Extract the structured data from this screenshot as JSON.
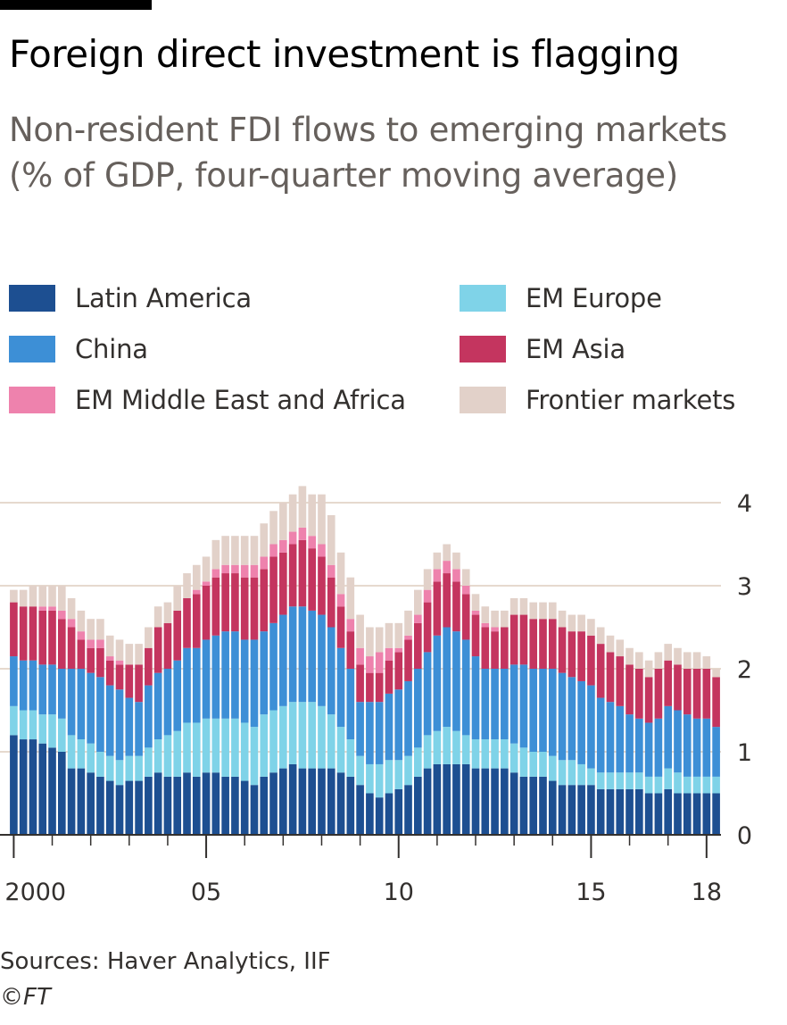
{
  "header": {
    "title": "Foreign direct investment is flagging",
    "subtitle": "Non-resident FDI flows to emerging markets (% of GDP, four-quarter moving average)"
  },
  "footer": {
    "source": "Sources: Haver Analytics, IIF",
    "copyright_symbol": "©",
    "copyright_brand": "FT"
  },
  "chart_data": {
    "type": "bar",
    "stacked": true,
    "title": "Foreign direct investment is flagging",
    "subtitle": "Non-resident FDI flows to emerging markets (% of GDP, four-quarter moving average)",
    "xlabel": "",
    "ylabel": "",
    "ylim": [
      0,
      4.4
    ],
    "yticks": [
      0,
      1,
      2,
      3,
      4
    ],
    "xtick_labels": [
      "2000",
      "05",
      "10",
      "15",
      "18"
    ],
    "grid": true,
    "legend_position": "top",
    "categories": [
      "2000Q1",
      "2000Q2",
      "2000Q3",
      "2000Q4",
      "2001Q1",
      "2001Q2",
      "2001Q3",
      "2001Q4",
      "2002Q1",
      "2002Q2",
      "2002Q3",
      "2002Q4",
      "2003Q1",
      "2003Q2",
      "2003Q3",
      "2003Q4",
      "2004Q1",
      "2004Q2",
      "2004Q3",
      "2004Q4",
      "2005Q1",
      "2005Q2",
      "2005Q3",
      "2005Q4",
      "2006Q1",
      "2006Q2",
      "2006Q3",
      "2006Q4",
      "2007Q1",
      "2007Q2",
      "2007Q3",
      "2007Q4",
      "2008Q1",
      "2008Q2",
      "2008Q3",
      "2008Q4",
      "2009Q1",
      "2009Q2",
      "2009Q3",
      "2009Q4",
      "2010Q1",
      "2010Q2",
      "2010Q3",
      "2010Q4",
      "2011Q1",
      "2011Q2",
      "2011Q3",
      "2011Q4",
      "2012Q1",
      "2012Q2",
      "2012Q3",
      "2012Q4",
      "2013Q1",
      "2013Q2",
      "2013Q3",
      "2013Q4",
      "2014Q1",
      "2014Q2",
      "2014Q3",
      "2014Q4",
      "2015Q1",
      "2015Q2",
      "2015Q3",
      "2015Q4",
      "2016Q1",
      "2016Q2",
      "2016Q3",
      "2016Q4",
      "2017Q1",
      "2017Q2",
      "2017Q3",
      "2017Q4",
      "2018Q1",
      "2018Q2"
    ],
    "series": [
      {
        "name": "Latin America",
        "color": "#1d4f91",
        "values": [
          1.2,
          1.15,
          1.15,
          1.1,
          1.05,
          1.0,
          0.8,
          0.8,
          0.75,
          0.7,
          0.65,
          0.6,
          0.65,
          0.65,
          0.7,
          0.75,
          0.7,
          0.7,
          0.75,
          0.7,
          0.75,
          0.75,
          0.7,
          0.7,
          0.65,
          0.6,
          0.7,
          0.75,
          0.8,
          0.85,
          0.8,
          0.8,
          0.8,
          0.8,
          0.75,
          0.7,
          0.6,
          0.5,
          0.45,
          0.5,
          0.55,
          0.6,
          0.7,
          0.8,
          0.85,
          0.85,
          0.85,
          0.85,
          0.8,
          0.8,
          0.8,
          0.8,
          0.75,
          0.7,
          0.7,
          0.7,
          0.65,
          0.6,
          0.6,
          0.6,
          0.6,
          0.55,
          0.55,
          0.55,
          0.55,
          0.55,
          0.5,
          0.5,
          0.55,
          0.5,
          0.5,
          0.5,
          0.5,
          0.5
        ]
      },
      {
        "name": "EM Europe",
        "color": "#7fd3e8",
        "values": [
          0.35,
          0.35,
          0.35,
          0.35,
          0.4,
          0.4,
          0.4,
          0.35,
          0.35,
          0.3,
          0.3,
          0.3,
          0.3,
          0.3,
          0.35,
          0.4,
          0.5,
          0.55,
          0.6,
          0.65,
          0.65,
          0.65,
          0.7,
          0.7,
          0.7,
          0.7,
          0.75,
          0.75,
          0.75,
          0.75,
          0.8,
          0.8,
          0.75,
          0.65,
          0.55,
          0.45,
          0.35,
          0.35,
          0.4,
          0.4,
          0.35,
          0.35,
          0.35,
          0.4,
          0.4,
          0.45,
          0.4,
          0.35,
          0.35,
          0.35,
          0.35,
          0.35,
          0.35,
          0.35,
          0.3,
          0.3,
          0.3,
          0.3,
          0.3,
          0.25,
          0.2,
          0.2,
          0.2,
          0.2,
          0.2,
          0.2,
          0.2,
          0.2,
          0.25,
          0.25,
          0.2,
          0.2,
          0.2,
          0.2
        ]
      },
      {
        "name": "China",
        "color": "#3d8fd6",
        "values": [
          0.6,
          0.6,
          0.6,
          0.6,
          0.6,
          0.6,
          0.8,
          0.85,
          0.85,
          0.9,
          0.85,
          0.85,
          0.7,
          0.65,
          0.75,
          0.8,
          0.8,
          0.85,
          0.9,
          0.9,
          0.95,
          1.0,
          1.05,
          1.05,
          1.0,
          1.05,
          1.0,
          1.05,
          1.1,
          1.15,
          1.15,
          1.1,
          1.1,
          1.05,
          0.95,
          0.85,
          0.65,
          0.75,
          0.75,
          0.8,
          0.85,
          0.9,
          0.95,
          1.0,
          1.15,
          1.2,
          1.2,
          1.15,
          1.0,
          0.85,
          0.85,
          0.85,
          0.95,
          1.0,
          1.0,
          1.0,
          1.05,
          1.05,
          1.0,
          1.0,
          1.0,
          0.9,
          0.85,
          0.8,
          0.7,
          0.65,
          0.65,
          0.7,
          0.75,
          0.75,
          0.75,
          0.7,
          0.7,
          0.6
        ]
      },
      {
        "name": "EM Asia",
        "color": "#c4355f",
        "values": [
          0.65,
          0.65,
          0.65,
          0.65,
          0.65,
          0.6,
          0.5,
          0.35,
          0.3,
          0.35,
          0.3,
          0.3,
          0.4,
          0.45,
          0.45,
          0.55,
          0.55,
          0.6,
          0.6,
          0.65,
          0.65,
          0.7,
          0.7,
          0.7,
          0.75,
          0.75,
          0.75,
          0.8,
          0.75,
          0.75,
          0.8,
          0.75,
          0.7,
          0.6,
          0.5,
          0.45,
          0.45,
          0.35,
          0.35,
          0.4,
          0.45,
          0.5,
          0.55,
          0.6,
          0.65,
          0.65,
          0.6,
          0.55,
          0.5,
          0.5,
          0.45,
          0.5,
          0.6,
          0.6,
          0.6,
          0.6,
          0.6,
          0.55,
          0.55,
          0.6,
          0.6,
          0.65,
          0.6,
          0.6,
          0.6,
          0.6,
          0.55,
          0.6,
          0.55,
          0.55,
          0.55,
          0.6,
          0.6,
          0.6
        ]
      },
      {
        "name": "EM Middle East and Africa",
        "color": "#ee82ad",
        "values": [
          0.0,
          0.0,
          0.0,
          0.05,
          0.05,
          0.1,
          0.1,
          0.1,
          0.1,
          0.1,
          0.05,
          0.05,
          0.0,
          0.0,
          0.0,
          0.0,
          0.0,
          0.0,
          0.0,
          0.05,
          0.05,
          0.1,
          0.1,
          0.1,
          0.15,
          0.15,
          0.15,
          0.15,
          0.15,
          0.15,
          0.15,
          0.15,
          0.15,
          0.15,
          0.15,
          0.15,
          0.2,
          0.2,
          0.25,
          0.15,
          0.05,
          0.05,
          0.1,
          0.15,
          0.15,
          0.15,
          0.15,
          0.1,
          0.05,
          0.05,
          0.05,
          0.0,
          0.0,
          0.0,
          0.0,
          0.0,
          0.0,
          0.0,
          0.0,
          0.0,
          0.0,
          0.0,
          0.0,
          0.0,
          0.0,
          0.0,
          0.0,
          0.0,
          0.0,
          0.0,
          0.0,
          0.0,
          0.0,
          0.0
        ]
      },
      {
        "name": "Frontier markets",
        "color": "#e2d1c9",
        "values": [
          0.15,
          0.2,
          0.25,
          0.25,
          0.25,
          0.3,
          0.25,
          0.25,
          0.25,
          0.25,
          0.25,
          0.25,
          0.25,
          0.25,
          0.25,
          0.25,
          0.25,
          0.3,
          0.3,
          0.3,
          0.3,
          0.35,
          0.35,
          0.35,
          0.35,
          0.35,
          0.4,
          0.4,
          0.45,
          0.45,
          0.5,
          0.5,
          0.6,
          0.6,
          0.5,
          0.5,
          0.4,
          0.35,
          0.3,
          0.3,
          0.3,
          0.3,
          0.3,
          0.25,
          0.2,
          0.2,
          0.2,
          0.2,
          0.2,
          0.2,
          0.2,
          0.2,
          0.2,
          0.2,
          0.2,
          0.2,
          0.2,
          0.2,
          0.2,
          0.2,
          0.2,
          0.2,
          0.2,
          0.2,
          0.2,
          0.2,
          0.2,
          0.2,
          0.2,
          0.2,
          0.2,
          0.2,
          0.15,
          0.1
        ]
      }
    ]
  }
}
